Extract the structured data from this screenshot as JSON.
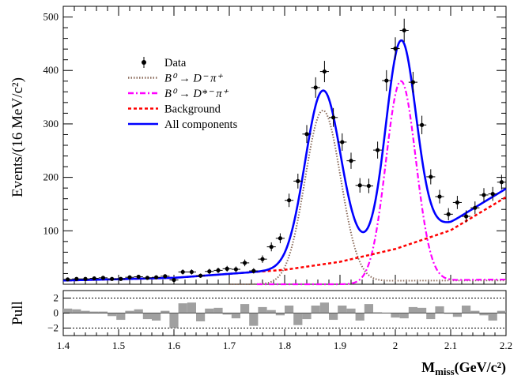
{
  "chart_data": [
    {
      "type": "scatter",
      "panel": "main",
      "ylabel": "Events/(16 MeV/c²)",
      "xlim": [
        1.4,
        2.2
      ],
      "ylim": [
        0,
        520
      ],
      "x_ticks": [
        "1.4",
        "1.5",
        "1.6",
        "1.7",
        "1.8",
        "1.9",
        "2",
        "2.1",
        "2.2"
      ],
      "y_ticks": [
        "100",
        "200",
        "300",
        "400",
        "500"
      ],
      "legend": {
        "position": "top-left",
        "entries": [
          {
            "key": "data",
            "label": "Data",
            "style": "marker"
          },
          {
            "key": "dminus",
            "label": "B⁰ → D⁻ π⁺",
            "style": "dotted",
            "color": "#8b6c5c"
          },
          {
            "key": "dstar",
            "label": "B⁰ → D*⁻ π⁺",
            "style": "dashdot",
            "color": "#ff00ff"
          },
          {
            "key": "background",
            "label": "Background",
            "style": "dashed",
            "color": "#ff0000"
          },
          {
            "key": "total",
            "label": "All components",
            "style": "solid",
            "color": "#0000ff"
          }
        ]
      },
      "data_points": [
        {
          "x": 1.408,
          "y": 9
        },
        {
          "x": 1.424,
          "y": 10
        },
        {
          "x": 1.44,
          "y": 10
        },
        {
          "x": 1.456,
          "y": 11
        },
        {
          "x": 1.472,
          "y": 12
        },
        {
          "x": 1.488,
          "y": 10
        },
        {
          "x": 1.504,
          "y": 10
        },
        {
          "x": 1.52,
          "y": 13
        },
        {
          "x": 1.536,
          "y": 14
        },
        {
          "x": 1.552,
          "y": 12
        },
        {
          "x": 1.568,
          "y": 13
        },
        {
          "x": 1.584,
          "y": 15
        },
        {
          "x": 1.6,
          "y": 8
        },
        {
          "x": 1.616,
          "y": 23
        },
        {
          "x": 1.632,
          "y": 23
        },
        {
          "x": 1.648,
          "y": 16
        },
        {
          "x": 1.664,
          "y": 24
        },
        {
          "x": 1.68,
          "y": 26
        },
        {
          "x": 1.696,
          "y": 29
        },
        {
          "x": 1.712,
          "y": 28
        },
        {
          "x": 1.728,
          "y": 40
        },
        {
          "x": 1.744,
          "y": 25
        },
        {
          "x": 1.76,
          "y": 47
        },
        {
          "x": 1.776,
          "y": 70
        },
        {
          "x": 1.792,
          "y": 86
        },
        {
          "x": 1.808,
          "y": 157
        },
        {
          "x": 1.824,
          "y": 193
        },
        {
          "x": 1.84,
          "y": 281
        },
        {
          "x": 1.856,
          "y": 368
        },
        {
          "x": 1.872,
          "y": 398
        },
        {
          "x": 1.888,
          "y": 312
        },
        {
          "x": 1.904,
          "y": 266
        },
        {
          "x": 1.92,
          "y": 231
        },
        {
          "x": 1.936,
          "y": 185
        },
        {
          "x": 1.952,
          "y": 184
        },
        {
          "x": 1.968,
          "y": 251
        },
        {
          "x": 1.984,
          "y": 381
        },
        {
          "x": 2.0,
          "y": 441
        },
        {
          "x": 2.016,
          "y": 475
        },
        {
          "x": 2.032,
          "y": 378
        },
        {
          "x": 2.048,
          "y": 298
        },
        {
          "x": 2.064,
          "y": 201
        },
        {
          "x": 2.08,
          "y": 164
        },
        {
          "x": 2.096,
          "y": 131
        },
        {
          "x": 2.112,
          "y": 153
        },
        {
          "x": 2.128,
          "y": 127
        },
        {
          "x": 2.144,
          "y": 143
        },
        {
          "x": 2.16,
          "y": 167
        },
        {
          "x": 2.176,
          "y": 169
        },
        {
          "x": 2.192,
          "y": 191
        }
      ],
      "components": {
        "dminus": {
          "amplitude": 325,
          "mean": 1.869,
          "sigma": 0.032,
          "tail_level": 7
        },
        "dstar": {
          "amplitude": 380,
          "mean": 2.01,
          "sigma": 0.027,
          "tail_level": 9
        },
        "background": {
          "at_x": [
            1.4,
            1.6,
            1.8,
            1.9,
            2.0,
            2.1,
            2.2
          ],
          "y": [
            7,
            12,
            27,
            42,
            66,
            101,
            163
          ]
        }
      }
    },
    {
      "type": "bar",
      "panel": "pull",
      "ylabel": "Pull",
      "xlabel": "Mmiss (GeV/c²)",
      "xlabel_main": "M",
      "xlabel_sub": "miss",
      "xlabel_units": "(GeV/c²)",
      "xlim": [
        1.4,
        2.2
      ],
      "ylim": [
        -3,
        3
      ],
      "y_ticks": [
        "2",
        "0",
        "−2"
      ],
      "reference_lines": [
        2,
        0,
        -2
      ],
      "x": [
        1.408,
        1.424,
        1.44,
        1.456,
        1.472,
        1.488,
        1.504,
        1.52,
        1.536,
        1.552,
        1.568,
        1.584,
        1.6,
        1.616,
        1.632,
        1.648,
        1.664,
        1.68,
        1.696,
        1.712,
        1.728,
        1.744,
        1.76,
        1.776,
        1.792,
        1.808,
        1.824,
        1.84,
        1.856,
        1.872,
        1.888,
        1.904,
        1.92,
        1.936,
        1.952,
        1.968,
        1.984,
        2.0,
        2.016,
        2.032,
        2.048,
        2.064,
        2.08,
        2.096,
        2.112,
        2.128,
        2.144,
        2.16,
        2.176,
        2.192
      ],
      "values": [
        0.6,
        0.5,
        0.3,
        0.2,
        0.2,
        -0.4,
        -0.9,
        0.3,
        0.5,
        -0.8,
        -1.0,
        0.3,
        -2.0,
        1.3,
        1.4,
        -1.1,
        0.6,
        0.7,
        -0.2,
        -0.7,
        1.2,
        -1.7,
        0.8,
        0.4,
        -0.3,
        1.0,
        -1.6,
        -0.8,
        1.0,
        1.4,
        -0.9,
        1.0,
        0.6,
        -1.0,
        1.2,
        0.1,
        0.0,
        -0.6,
        -0.7,
        0.8,
        0.7,
        -0.8,
        0.9,
        -0.1,
        -0.5,
        1.0,
        0.3,
        -0.3,
        -1.0,
        0.3
      ]
    }
  ]
}
